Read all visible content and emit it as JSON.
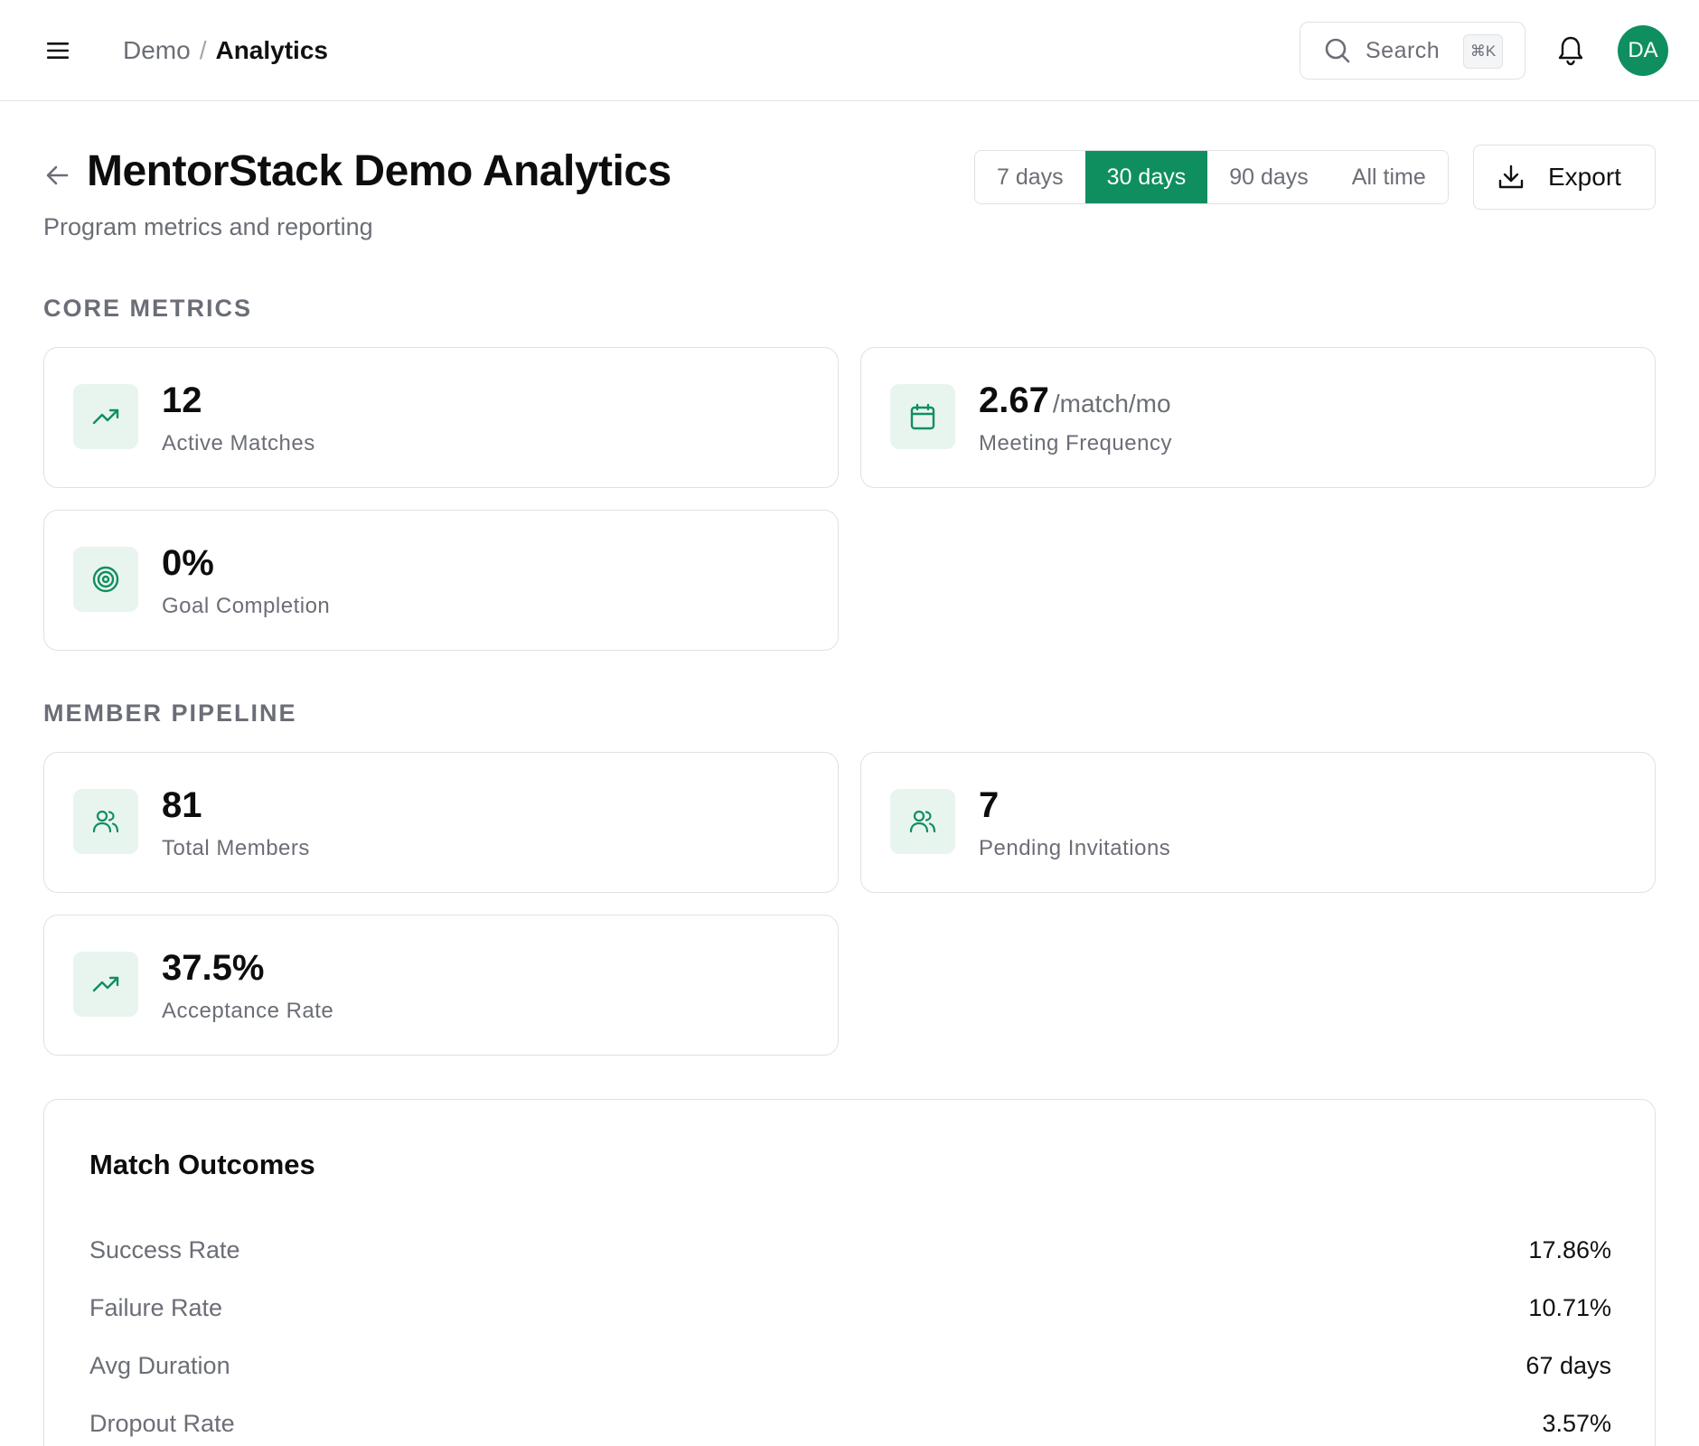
{
  "header": {
    "breadcrumb_parent": "Demo",
    "breadcrumb_separator": "/",
    "breadcrumb_current": "Analytics",
    "search_label": "Search",
    "search_shortcut": "⌘K",
    "avatar_initials": "DA"
  },
  "page": {
    "title": "MentorStack Demo Analytics",
    "subtitle": "Program metrics and reporting"
  },
  "range": {
    "options": [
      "7 days",
      "30 days",
      "90 days",
      "All time"
    ],
    "selected": "30 days"
  },
  "export_label": "Export",
  "sections": {
    "core_metrics": "CORE METRICS",
    "member_pipeline": "MEMBER PIPELINE"
  },
  "metrics": {
    "active_matches": {
      "value": "12",
      "label": "Active Matches",
      "icon": "trending-up-icon"
    },
    "meeting_frequency": {
      "value": "2.67",
      "unit": "/match/mo",
      "label": "Meeting Frequency",
      "icon": "calendar-icon"
    },
    "goal_completion": {
      "value": "0%",
      "label": "Goal Completion",
      "icon": "target-icon"
    },
    "total_members": {
      "value": "81",
      "label": "Total Members",
      "icon": "users-icon"
    },
    "pending_invitations": {
      "value": "7",
      "label": "Pending Invitations",
      "icon": "users-icon"
    },
    "acceptance_rate": {
      "value": "37.5%",
      "label": "Acceptance Rate",
      "icon": "trending-up-icon"
    }
  },
  "outcomes": {
    "title": "Match Outcomes",
    "rows": [
      {
        "label": "Success Rate",
        "value": "17.86%"
      },
      {
        "label": "Failure Rate",
        "value": "10.71%"
      },
      {
        "label": "Avg Duration",
        "value": "67 days"
      },
      {
        "label": "Dropout Rate",
        "value": "3.57%"
      }
    ]
  },
  "colors": {
    "accent": "#0f8f5f",
    "icon_bg": "#e8f5ee",
    "muted_text": "#6b6e76",
    "border": "#dfe1e5"
  }
}
